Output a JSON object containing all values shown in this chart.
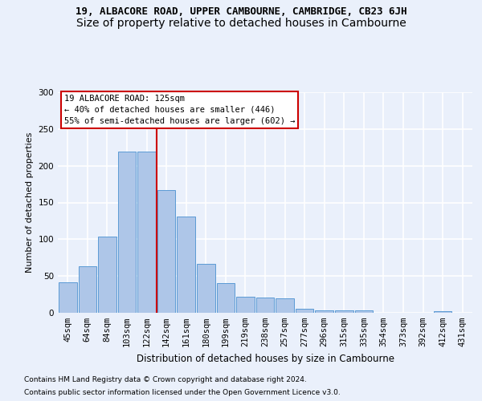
{
  "title1": "19, ALBACORE ROAD, UPPER CAMBOURNE, CAMBRIDGE, CB23 6JH",
  "title2": "Size of property relative to detached houses in Cambourne",
  "xlabel": "Distribution of detached houses by size in Cambourne",
  "ylabel": "Number of detached properties",
  "categories": [
    "45sqm",
    "64sqm",
    "84sqm",
    "103sqm",
    "122sqm",
    "142sqm",
    "161sqm",
    "180sqm",
    "199sqm",
    "219sqm",
    "238sqm",
    "257sqm",
    "277sqm",
    "296sqm",
    "315sqm",
    "335sqm",
    "354sqm",
    "373sqm",
    "392sqm",
    "412sqm",
    "431sqm"
  ],
  "values": [
    41,
    63,
    104,
    219,
    219,
    167,
    131,
    67,
    40,
    22,
    21,
    20,
    6,
    3,
    3,
    3,
    0,
    0,
    0,
    2,
    0
  ],
  "bar_color": "#aec6e8",
  "bar_edge_color": "#5b9bd5",
  "vline_x": 4.5,
  "vline_color": "#cc0000",
  "annotation_line1": "19 ALBACORE ROAD: 125sqm",
  "annotation_line2": "← 40% of detached houses are smaller (446)",
  "annotation_line3": "55% of semi-detached houses are larger (602) →",
  "annotation_box_color": "#ffffff",
  "annotation_box_edge": "#cc0000",
  "ylim": [
    0,
    300
  ],
  "yticks": [
    0,
    50,
    100,
    150,
    200,
    250,
    300
  ],
  "footnote1": "Contains HM Land Registry data © Crown copyright and database right 2024.",
  "footnote2": "Contains public sector information licensed under the Open Government Licence v3.0.",
  "bg_color": "#eaf0fb",
  "grid_color": "#ffffff",
  "title1_fontsize": 9,
  "title2_fontsize": 10,
  "xlabel_fontsize": 8.5,
  "ylabel_fontsize": 8,
  "tick_fontsize": 7.5,
  "annot_fontsize": 7.5,
  "footnote_fontsize": 6.5
}
